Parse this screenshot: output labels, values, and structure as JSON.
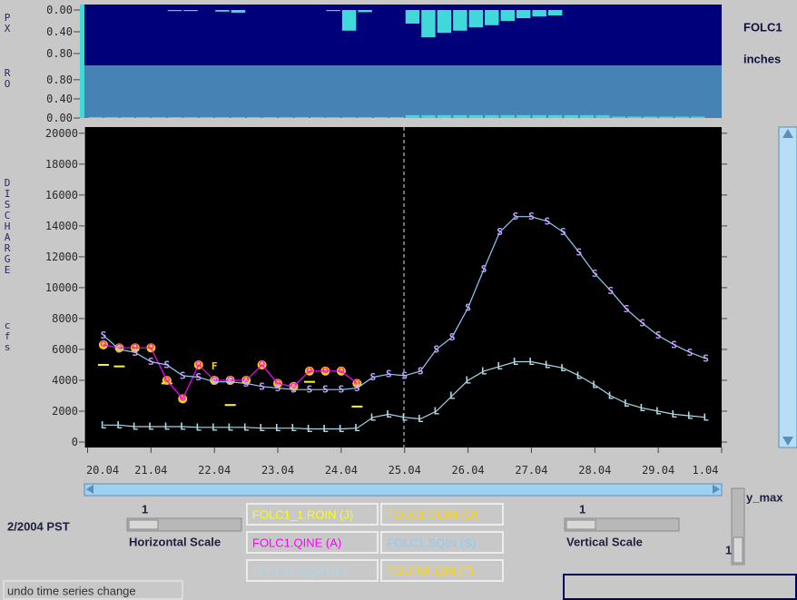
{
  "precip_panel": {
    "station": "FOLC1",
    "unit": "inches"
  },
  "chart_data": [
    {
      "type": "bar",
      "label": "PX",
      "color": "#40d8d8",
      "x": [
        0.25,
        0.5,
        0.75,
        1,
        1.25,
        1.5,
        1.75,
        2,
        2.25,
        2.5,
        2.75,
        3,
        3.25,
        3.5,
        3.75,
        4,
        4.25,
        4.5,
        4.75,
        5,
        5.25,
        5.5,
        5.75,
        6,
        6.25,
        6.5,
        6.75,
        7,
        7.25,
        7.5,
        7.75,
        8,
        8.25,
        8.5,
        8.75,
        9,
        9.25,
        9.5,
        9.75
      ],
      "values": [
        0,
        0,
        0,
        0,
        0,
        0.02,
        0.02,
        0,
        0.03,
        0.05,
        0,
        0,
        0,
        0,
        0,
        0.02,
        0.38,
        0.04,
        0,
        0,
        0.25,
        0.5,
        0.42,
        0.38,
        0.32,
        0.28,
        0.2,
        0.15,
        0.12,
        0.1,
        0,
        0,
        0,
        0,
        0,
        0,
        0,
        0,
        0
      ],
      "xlim": [
        -0.05,
        10
      ],
      "ylim": [
        1,
        0
      ],
      "yticks": [
        {
          "value": 0,
          "label": "0.00"
        },
        {
          "value": 0.4,
          "label": "0.40"
        },
        {
          "value": 0.8,
          "label": "0.80"
        }
      ]
    },
    {
      "type": "bar",
      "label": "RO",
      "color": "#40d8d8",
      "x": [
        0.25,
        0.5,
        0.75,
        1,
        1.25,
        1.5,
        1.75,
        2,
        2.25,
        2.5,
        2.75,
        3,
        3.25,
        3.5,
        3.75,
        4,
        4.25,
        4.5,
        4.75,
        5,
        5.25,
        5.5,
        5.75,
        6,
        6.25,
        6.5,
        6.75,
        7,
        7.25,
        7.5,
        7.75,
        8,
        8.25,
        8.5,
        8.75,
        9,
        9.25,
        9.5,
        9.75
      ],
      "values": [
        0.02,
        0.02,
        0.02,
        0.02,
        0.02,
        0.02,
        0.02,
        0.02,
        0.02,
        0.02,
        0.02,
        0.02,
        0.02,
        0.02,
        0.02,
        0.02,
        0.02,
        0.02,
        0.02,
        0.02,
        0.06,
        0.06,
        0.06,
        0.06,
        0.06,
        0.06,
        0.06,
        0.06,
        0.06,
        0.06,
        0.06,
        0.06,
        0.06,
        0.03,
        0.03,
        0.03,
        0.03,
        0.03,
        0.03
      ],
      "xlim": [
        -0.05,
        10
      ],
      "ylim": [
        0,
        1.1
      ],
      "yticks": [
        {
          "value": 0,
          "label": "0.00"
        },
        {
          "value": 0.4,
          "label": "0.40"
        },
        {
          "value": 0.8,
          "label": "0.80"
        }
      ]
    },
    {
      "type": "line",
      "ylabel": "DISCHARGE",
      "yunit": "cfs",
      "x": [
        0.25,
        0.5,
        0.75,
        1,
        1.25,
        1.5,
        1.75,
        2,
        2.25,
        2.5,
        2.75,
        3,
        3.25,
        3.5,
        3.75,
        4,
        4.25,
        4.5,
        4.75,
        5,
        5.25,
        5.5,
        5.75,
        6,
        6.25,
        6.5,
        6.75,
        7,
        7.25,
        7.5,
        7.75,
        8,
        8.25,
        8.5,
        8.75,
        9,
        9.25,
        9.5,
        9.75
      ],
      "xlim": [
        -0.05,
        10
      ],
      "xticks": [
        {
          "value": 0,
          "label": "20.04"
        },
        {
          "value": 1,
          "label": "21.04"
        },
        {
          "value": 2,
          "label": "22.04"
        },
        {
          "value": 3,
          "label": "23.04"
        },
        {
          "value": 4,
          "label": "24.04"
        },
        {
          "value": 5,
          "label": "25.04"
        },
        {
          "value": 6,
          "label": "26.04"
        },
        {
          "value": 7,
          "label": "27.04"
        },
        {
          "value": 8,
          "label": "28.04"
        },
        {
          "value": 9,
          "label": "29.04"
        },
        {
          "value": 10,
          "label": "1.04"
        }
      ],
      "ylim": [
        0,
        20400
      ],
      "yticks": [
        0,
        2000,
        4000,
        6000,
        8000,
        10000,
        12000,
        14000,
        16000,
        18000,
        20000
      ],
      "series": [
        {
          "name": "FOLC1_1.ROIN (J)",
          "color": "#ffff00",
          "style": "dots",
          "values": [
            5000,
            4900,
            null,
            null,
            3800,
            null,
            null,
            null,
            2400,
            null,
            null,
            null,
            null,
            3900,
            null,
            null,
            2300,
            null,
            null,
            null,
            null,
            null,
            null,
            null,
            null,
            null,
            null,
            null,
            null,
            null,
            null,
            null,
            null,
            null,
            null,
            null,
            null,
            null,
            null
          ]
        },
        {
          "name": "FOLC1.ROIN (O)",
          "color": "#ffd700",
          "marker": "O",
          "marker_color": "#ff3399",
          "style": "circles",
          "values": [
            6300,
            6100,
            6100,
            6100,
            4000,
            2800,
            5000,
            4000,
            4000,
            4000,
            5000,
            3800,
            3600,
            4600,
            4600,
            4600,
            3800,
            null,
            null,
            null,
            null,
            null,
            null,
            null,
            null,
            null,
            null,
            null,
            null,
            null,
            null,
            null,
            null,
            null,
            null,
            null,
            null,
            null,
            null
          ]
        },
        {
          "name": "FOLC1.QINE (A)",
          "color": "#ff00ff",
          "style": "line",
          "values": [
            6300,
            6100,
            6100,
            6100,
            4000,
            2800,
            5000,
            4000,
            4000,
            4000,
            5000,
            3800,
            3600,
            4600,
            4600,
            4600,
            3800,
            null,
            null,
            null,
            null,
            null,
            null,
            null,
            null,
            null,
            null,
            null,
            null,
            null,
            null,
            null,
            null,
            null,
            null,
            null,
            null,
            null,
            null
          ]
        },
        {
          "name": "FOLC1.SQIN (S)",
          "color": "#87cefa",
          "marker": "S",
          "marker_color": "#c8a0ff",
          "style": "line+letters",
          "values": [
            6900,
            6000,
            5800,
            5200,
            5000,
            4300,
            4200,
            3900,
            3900,
            3800,
            3600,
            3500,
            3400,
            3400,
            3400,
            3400,
            3500,
            4200,
            4400,
            4300,
            4600,
            6000,
            6800,
            8700,
            11200,
            13600,
            14600,
            14600,
            14300,
            13600,
            12300,
            10900,
            9800,
            8600,
            7700,
            6900,
            6300,
            5800,
            5400
          ]
        },
        {
          "name": "FOLC1L.SQIN (L)",
          "color": "#add8e6",
          "marker": "L",
          "marker_color": "#add8e6",
          "style": "line+letters",
          "values": [
            1100,
            1100,
            1000,
            1000,
            1000,
            1000,
            950,
            950,
            950,
            950,
            900,
            900,
            900,
            850,
            850,
            850,
            900,
            1600,
            1800,
            1600,
            1500,
            2000,
            3000,
            4000,
            4600,
            4900,
            5200,
            5200,
            5000,
            4800,
            4300,
            3700,
            3000,
            2500,
            2200,
            2000,
            1800,
            1700,
            1600
          ]
        },
        {
          "name": "FOLFNF.QIN (F)",
          "color": "#ffd700",
          "marker": "F",
          "marker_color": "#ffd700",
          "style": "letters",
          "values": [
            null,
            null,
            null,
            null,
            null,
            null,
            null,
            4900,
            null,
            null,
            null,
            null,
            null,
            null,
            null,
            null,
            null,
            null,
            null,
            null,
            null,
            null,
            null,
            null,
            null,
            null,
            null,
            null,
            null,
            null,
            null,
            null,
            null,
            null,
            null,
            null,
            null,
            null,
            null
          ]
        }
      ]
    }
  ],
  "controls": {
    "timezone": "2/2004 PST",
    "horizontal_scale": {
      "label": "Horizontal Scale",
      "value": 1
    },
    "vertical_scale": {
      "label": "Vertical Scale",
      "value": 1
    },
    "y_max": {
      "label": "y_max",
      "value": 1
    },
    "undo_button": "undo time series change"
  }
}
